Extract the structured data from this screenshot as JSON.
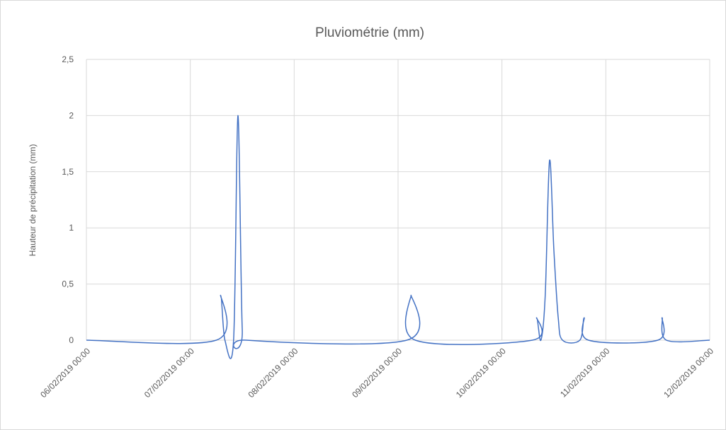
{
  "chart_data": {
    "type": "line",
    "title": "Pluviométrie (mm)",
    "y_label": "Hauteur de précipitation (mm)",
    "x": [
      "06/02/2019 00:00",
      "07/02/2019 06:00",
      "07/02/2019 07:00",
      "07/02/2019 08:00",
      "07/02/2019 10:00",
      "07/02/2019 11:00",
      "07/02/2019 12:00",
      "07/02/2019 13:00",
      "09/02/2019 02:00",
      "09/02/2019 03:00",
      "09/02/2019 04:00",
      "10/02/2019 07:00",
      "10/02/2019 08:00",
      "10/02/2019 09:00",
      "10/02/2019 10:00",
      "10/02/2019 11:00",
      "10/02/2019 12:00",
      "10/02/2019 13:00",
      "10/02/2019 14:00",
      "10/02/2019 18:00",
      "10/02/2019 19:00",
      "10/02/2019 20:00",
      "11/02/2019 12:00",
      "11/02/2019 13:00",
      "11/02/2019 14:00",
      "12/02/2019 00:00"
    ],
    "series": [
      {
        "name": "Pluviométrie",
        "color": "#4472c4",
        "values": [
          0,
          0,
          0.4,
          0,
          0,
          2,
          0.1,
          0,
          0,
          0.4,
          0,
          0,
          0.2,
          0,
          0.4,
          1.6,
          0.8,
          0.2,
          0,
          0,
          0.2,
          0,
          0,
          0.2,
          0,
          0
        ]
      }
    ],
    "xlim": [
      "06/02/2019 00:00",
      "12/02/2019 00:00"
    ],
    "xticks": [
      "06/02/2019 00:00",
      "07/02/2019 00:00",
      "08/02/2019 00:00",
      "09/02/2019 00:00",
      "10/02/2019 00:00",
      "11/02/2019 00:00",
      "12/02/2019 00:00"
    ],
    "ylim": [
      0,
      2.5
    ],
    "yticks": [
      0,
      {
        "value": 0.5,
        "label": "0,5"
      },
      1,
      {
        "value": 1.5,
        "label": "1,5"
      },
      2,
      {
        "value": 2.5,
        "label": "2,5"
      }
    ],
    "grid": true
  }
}
